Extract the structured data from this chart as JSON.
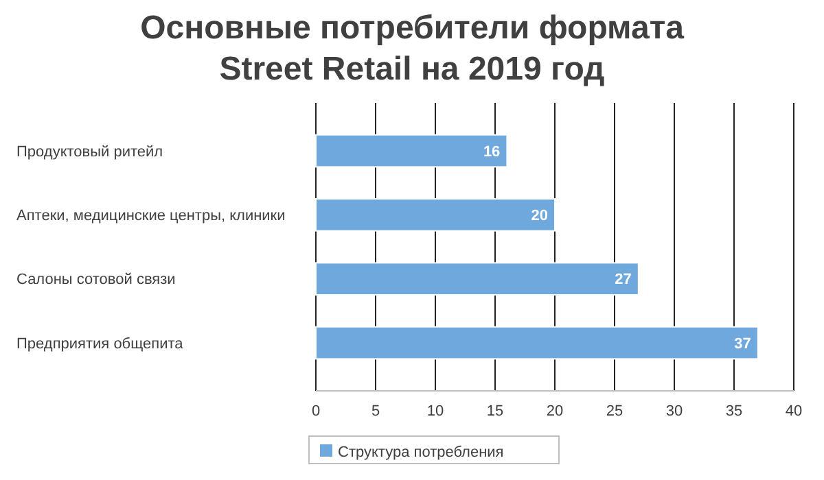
{
  "chart_data": {
    "type": "bar",
    "orientation": "horizontal",
    "title": "Основные потребители формата Street Retail на 2019 год",
    "categories": [
      "Продуктовый ритейл",
      "Аптеки, медицинские центры, клиники",
      "Салоны сотовой связи",
      "Предприятия общепита"
    ],
    "series": [
      {
        "name": "Структура потребления",
        "color": "#6fa8dc",
        "values": [
          16,
          20,
          27,
          37
        ]
      }
    ],
    "xlim": [
      0,
      40
    ],
    "xticks": [
      0,
      5,
      10,
      15,
      20,
      25,
      30,
      35,
      40
    ],
    "grid": "x",
    "legend": "bottom",
    "data_labels": true
  }
}
